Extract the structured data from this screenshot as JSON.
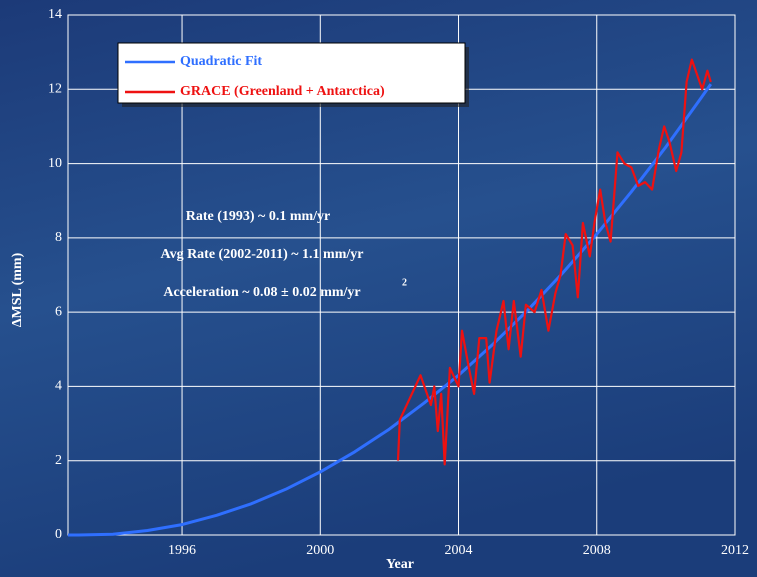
{
  "chart_data": {
    "type": "line",
    "xlabel": "Year",
    "ylabel": "ΔMSL (mm)",
    "xlim": [
      1992.7,
      2012
    ],
    "xticks": [
      1996,
      2000,
      2004,
      2008,
      2012
    ],
    "ylim": [
      0,
      14
    ],
    "yticks": [
      0,
      2,
      4,
      6,
      8,
      10,
      12,
      14
    ],
    "grid": true,
    "annotations": [
      "Rate (1993) ~ 0.1 mm/yr",
      "Avg Rate (2002-2011) ~ 1.1 mm/yr",
      "Acceleration ~ 0.08 ± 0.02 mm/yr",
      "2"
    ],
    "series": [
      {
        "name": "Quadratic Fit",
        "color": "#2f6fff",
        "x": [
          1992.7,
          1993,
          1994,
          1995,
          1996,
          1997,
          1998,
          1999,
          2000,
          2001,
          2002,
          2003,
          2004,
          2005,
          2006,
          2007,
          2008,
          2009,
          2010,
          2011,
          2011.3
        ],
        "values": [
          0,
          0,
          0.02,
          0.12,
          0.28,
          0.53,
          0.84,
          1.23,
          1.7,
          2.24,
          2.85,
          3.55,
          4.3,
          5.14,
          6.05,
          7.04,
          8.1,
          9.24,
          10.45,
          11.74,
          12.14
        ]
      },
      {
        "name": "GRACE (Greenland + Antarctica)",
        "color": "#ee1111",
        "x": [
          2002.25,
          2002.3,
          2002.9,
          2003.2,
          2003.3,
          2003.4,
          2003.5,
          2003.6,
          2003.75,
          2004,
          2004.1,
          2004.3,
          2004.45,
          2004.6,
          2004.8,
          2004.9,
          2005.1,
          2005.3,
          2005.45,
          2005.6,
          2005.8,
          2005.95,
          2006.2,
          2006.4,
          2006.6,
          2006.8,
          2006.95,
          2007.1,
          2007.3,
          2007.45,
          2007.6,
          2007.8,
          2007.95,
          2008.1,
          2008.25,
          2008.4,
          2008.6,
          2008.8,
          2009,
          2009.2,
          2009.4,
          2009.6,
          2009.8,
          2009.95,
          2010.1,
          2010.3,
          2010.45,
          2010.6,
          2010.75,
          2010.9,
          2011.05,
          2011.2,
          2011.3
        ],
        "values": [
          2.0,
          3.1,
          4.3,
          3.5,
          4.0,
          2.8,
          3.8,
          1.9,
          4.5,
          4.0,
          5.5,
          4.5,
          3.8,
          5.3,
          5.3,
          4.1,
          5.5,
          6.3,
          5.0,
          6.3,
          4.8,
          6.2,
          6.0,
          6.6,
          5.5,
          6.5,
          7.0,
          8.1,
          7.8,
          6.4,
          8.4,
          7.5,
          8.5,
          9.3,
          8.4,
          7.9,
          10.3,
          10.0,
          9.9,
          9.4,
          9.5,
          9.3,
          10.4,
          11.0,
          10.6,
          9.8,
          10.3,
          12.2,
          12.8,
          12.4,
          12.0,
          12.5,
          12.2
        ]
      }
    ]
  }
}
